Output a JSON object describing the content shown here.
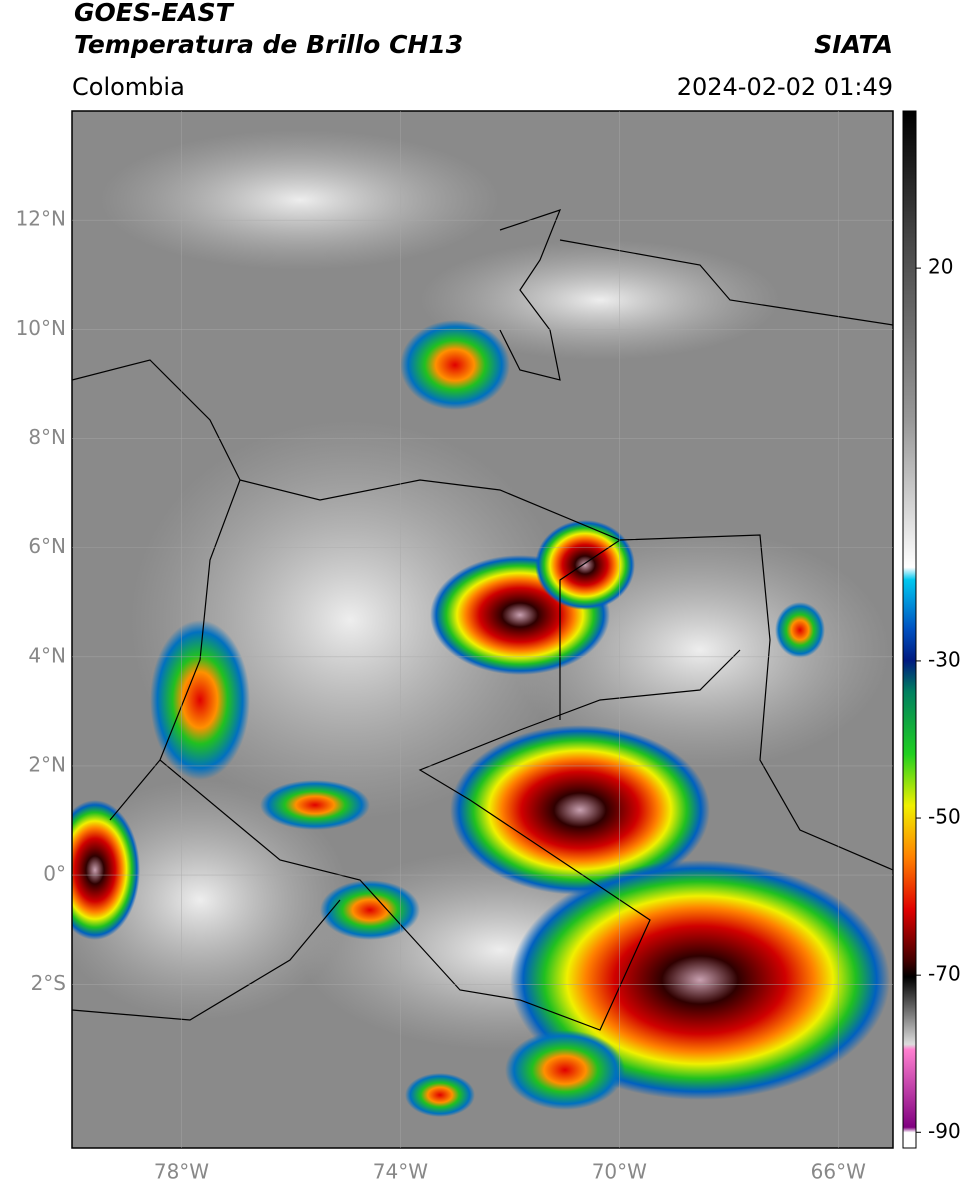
{
  "header": {
    "title": "GOES-EAST",
    "subtitle": "Temperatura de Brillo CH13",
    "region": "Colombia",
    "source": "SIATA",
    "timestamp": "2024-02-02 01:49"
  },
  "map": {
    "latlim": [
      -5,
      14
    ],
    "lonlim": [
      -80,
      -65
    ],
    "lat_ticks": [
      {
        "value": 12,
        "label": "12°N"
      },
      {
        "value": 10,
        "label": "10°N"
      },
      {
        "value": 8,
        "label": "8°N"
      },
      {
        "value": 6,
        "label": "6°N"
      },
      {
        "value": 4,
        "label": "4°N"
      },
      {
        "value": 2,
        "label": "2°N"
      },
      {
        "value": 0,
        "label": "0°"
      },
      {
        "value": -2,
        "label": "2°S"
      }
    ],
    "lon_ticks": [
      {
        "value": -78,
        "label": "78°W"
      },
      {
        "value": -74,
        "label": "74°W"
      },
      {
        "value": -70,
        "label": "70°W"
      },
      {
        "value": -66,
        "label": "66°W"
      }
    ]
  },
  "colorbar": {
    "lim": [
      -92,
      40
    ],
    "ticks": [
      20,
      -30,
      -50,
      -70,
      -90
    ]
  }
}
